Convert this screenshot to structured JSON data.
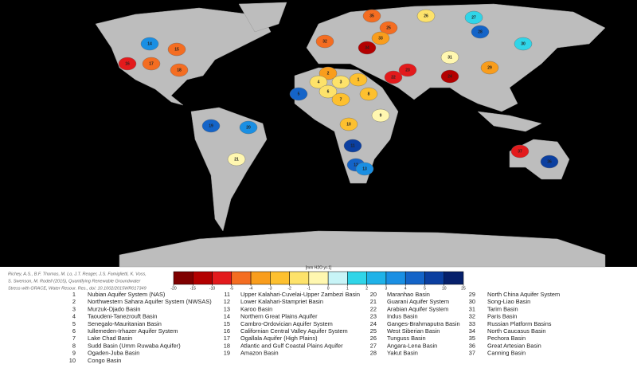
{
  "citation": [
    "Richey, A.S., B.F. Thomas, M. Lo, J.T. Reager, J.S. Famiglietti, K. Voss,",
    "S. Swenson, M. Rodell (2015), Quantifying Renewable Groundwater",
    "Stress with GRACE, Water Resour. Res., doi: 10.1002/2015WR017349"
  ],
  "colorbar": {
    "title": "[mm H2O yr-1]",
    "ticks": [
      -20,
      -15,
      -10,
      -5,
      -4,
      -3,
      -2,
      -1,
      0,
      1,
      2,
      3,
      4,
      5,
      10,
      25
    ],
    "colors": [
      "#7f0000",
      "#b30000",
      "#e31a1c",
      "#f46d21",
      "#f99d1c",
      "#fdc02f",
      "#fde26a",
      "#fff7b0",
      "#c8f4f7",
      "#30d5e8",
      "#1fb2e8",
      "#1a8fe3",
      "#1464c8",
      "#0b3fa0",
      "#06206b"
    ]
  },
  "basins": [
    {
      "number": 1,
      "name": "Nubian Aquifer System (NAS)",
      "color": "#fdc02f"
    },
    {
      "number": 2,
      "name": "Northwestern Sahara Aquifer System (NWSAS)",
      "color": "#f99d1c"
    },
    {
      "number": 3,
      "name": "Murzuk-Djado Basin",
      "color": "#fde26a"
    },
    {
      "number": 4,
      "name": "Taoudeni-Tanezrouft Basin",
      "color": "#fde26a"
    },
    {
      "number": 5,
      "name": "Senegalo-Mauritanian Basin",
      "color": "#1464c8"
    },
    {
      "number": 6,
      "name": "Iullemeden-Irhazer Aquifer System",
      "color": "#fde26a"
    },
    {
      "number": 7,
      "name": "Lake Chad Basin",
      "color": "#fdc02f"
    },
    {
      "number": 8,
      "name": "Sudd Basin (Umm Ruwaba Aquifer)",
      "color": "#fdc02f"
    },
    {
      "number": 9,
      "name": "Ogaden-Juba Basin",
      "color": "#fff7b0"
    },
    {
      "number": 10,
      "name": "Congo Basin",
      "color": "#fdc02f"
    },
    {
      "number": 11,
      "name": "Upper Kalahari-Cuvelai-Upper Zambezi Basin",
      "color": "#0b3fa0"
    },
    {
      "number": 12,
      "name": "Lower Kalahari-Stampriet Basin",
      "color": "#1464c8"
    },
    {
      "number": 13,
      "name": "Karoo Basin",
      "color": "#1a8fe3"
    },
    {
      "number": 14,
      "name": "Northern Great Plains Aquifer",
      "color": "#1a8fe3"
    },
    {
      "number": 15,
      "name": "Cambro-Ordovician Aquifer System",
      "color": "#f46d21"
    },
    {
      "number": 16,
      "name": "Californian Central Valley Aquifer System",
      "color": "#e31a1c"
    },
    {
      "number": 17,
      "name": "Ogallala Aquifer (High Plains)",
      "color": "#f46d21"
    },
    {
      "number": 18,
      "name": "Atlantic and Gulf Coastal Plains Aquifer",
      "color": "#f46d21"
    },
    {
      "number": 19,
      "name": "Amazon Basin",
      "color": "#1464c8"
    },
    {
      "number": 20,
      "name": "Maranhao Basin",
      "color": "#1a8fe3"
    },
    {
      "number": 21,
      "name": "Guarani Aquifer System",
      "color": "#fff7b0"
    },
    {
      "number": 22,
      "name": "Arabian Aquifer System",
      "color": "#e31a1c"
    },
    {
      "number": 23,
      "name": "Indus Basin",
      "color": "#e31a1c"
    },
    {
      "number": 24,
      "name": "Ganges-Brahmaputra Basin",
      "color": "#b30000"
    },
    {
      "number": 25,
      "name": "West Siberian Basin",
      "color": "#f46d21"
    },
    {
      "number": 26,
      "name": "Tunguss Basin",
      "color": "#fde26a"
    },
    {
      "number": 27,
      "name": "Angara-Lena Basin",
      "color": "#30d5e8"
    },
    {
      "number": 28,
      "name": "Yakut Basin",
      "color": "#1464c8"
    },
    {
      "number": 29,
      "name": "North China Aquifer System",
      "color": "#f99d1c"
    },
    {
      "number": 30,
      "name": "Song-Liao Basin",
      "color": "#30d5e8"
    },
    {
      "number": 31,
      "name": "Tarim Basin",
      "color": "#fff7b0"
    },
    {
      "number": 32,
      "name": "Paris Basin",
      "color": "#f46d21"
    },
    {
      "number": 33,
      "name": "Russian Platform Basins",
      "color": "#f99d1c"
    },
    {
      "number": 34,
      "name": "North Caucasus Basin",
      "color": "#b30000"
    },
    {
      "number": 35,
      "name": "Pechora Basin",
      "color": "#f46d21"
    },
    {
      "number": 36,
      "name": "Great Artesian Basin",
      "color": "#0b3fa0"
    },
    {
      "number": 37,
      "name": "Canning Basin",
      "color": "#e31a1c"
    }
  ]
}
